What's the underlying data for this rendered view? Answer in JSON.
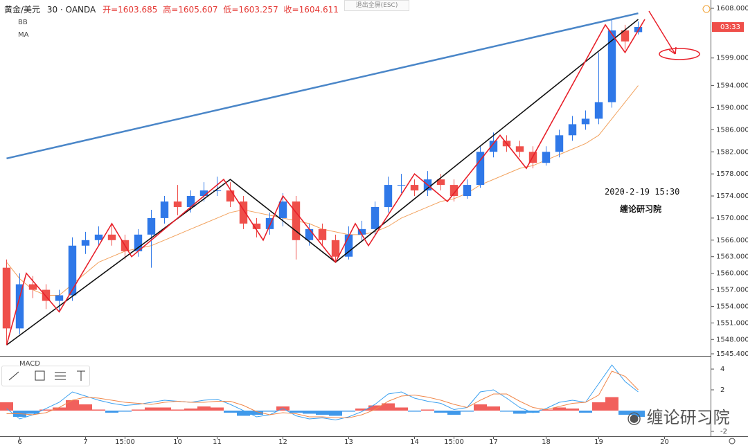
{
  "header": {
    "symbol": "黄金/美元",
    "interval": "30 · OANDA",
    "open": "开=1603.685",
    "high": "高=1605.607",
    "low": "低=1603.257",
    "close": "收=1604.611",
    "indicators": [
      "BB",
      "MA"
    ],
    "exit_fullscreen": "退出全屏(ESC)"
  },
  "watermark": "缠论研习院",
  "chart_data": [
    {
      "type": "candlestick",
      "timestamp_note": "2020-2-19 15:30",
      "author_note": "缠论研习院",
      "countdown": "03:33",
      "categories": [
        null,
        "6",
        null,
        null,
        null,
        null,
        "7",
        null,
        null,
        "15:00",
        null,
        null,
        null,
        "10",
        null,
        null,
        "11",
        null,
        null,
        null,
        null,
        "12",
        null,
        null,
        null,
        null,
        "13",
        null,
        null,
        null,
        null,
        "14",
        null,
        null,
        "15:00",
        null,
        null,
        "17",
        null,
        null,
        null,
        "18",
        null,
        null,
        null,
        "19",
        null,
        null,
        null,
        null,
        "20",
        null,
        null,
        null
      ],
      "open": [
        1561,
        1550,
        1558,
        1557,
        1555,
        1556,
        1565,
        1566,
        1567,
        1566,
        1564,
        1567,
        1570,
        1573,
        1572,
        1574,
        1575,
        1575,
        1573,
        1569,
        1568,
        1570,
        1573,
        1566,
        1568,
        1566,
        1563,
        1567,
        1568,
        1572,
        1576,
        1576,
        1575,
        1577,
        1576,
        1574,
        1576,
        1582,
        1584,
        1583,
        1582,
        1580,
        1582,
        1585,
        1587,
        1588,
        1591,
        1604,
        1603.685,
        null,
        null,
        null,
        null,
        null
      ],
      "high": [
        1562.5,
        1560,
        1559.5,
        1558,
        1557,
        1566.5,
        1567.5,
        1568.5,
        1569,
        1567,
        1568,
        1571.5,
        1574,
        1576,
        1575,
        1576.5,
        1577.5,
        1576.5,
        1574,
        1570,
        1571,
        1574.5,
        1574,
        1569,
        1569,
        1567,
        1568.5,
        1569.5,
        1573,
        1577.5,
        1578,
        1577,
        1578.5,
        1578,
        1577,
        1577,
        1583,
        1585.5,
        1585,
        1584,
        1583,
        1583,
        1586,
        1588.5,
        1589.5,
        1600,
        1606,
        1605,
        1605.607,
        null,
        null,
        null,
        null,
        null
      ],
      "low": [
        1547,
        1549,
        1555.5,
        1553.5,
        1553,
        1555,
        1563.5,
        1565,
        1565,
        1562.5,
        1563,
        1561,
        1569,
        1570.5,
        1571,
        1573,
        1574,
        1572,
        1568,
        1566.5,
        1567,
        1568.5,
        1562.5,
        1565,
        1565,
        1562,
        1562.5,
        1566,
        1567,
        1571,
        1574.5,
        1574,
        1574,
        1575,
        1573,
        1573.5,
        1575.5,
        1581,
        1582,
        1581,
        1579,
        1579.5,
        1581,
        1584,
        1586,
        1587,
        1590,
        1600.5,
        1603.257,
        null,
        null,
        null,
        null,
        null
      ],
      "close": [
        1550,
        1558,
        1557,
        1555,
        1556,
        1565,
        1566,
        1567,
        1566,
        1564,
        1567,
        1570,
        1573,
        1572,
        1574,
        1575,
        1575,
        1573,
        1569,
        1568,
        1570,
        1573,
        1566,
        1568,
        1566,
        1563,
        1567,
        1568,
        1572,
        1576,
        1576,
        1575,
        1577,
        1576,
        1574,
        1576,
        1582,
        1584,
        1583,
        1582,
        1580,
        1582,
        1585,
        1587,
        1588,
        1591,
        1604,
        1602,
        1604.611,
        null,
        null,
        null,
        null,
        null
      ],
      "up_color": "#2f78e8",
      "down_color": "#ef4f4a",
      "ma": {
        "color": "#f2a25e",
        "values": [
          1562,
          1559,
          1557,
          1556,
          1556,
          1558,
          1560,
          1562,
          1563,
          1564,
          1564.5,
          1565,
          1566,
          1567,
          1568,
          1569,
          1570,
          1571,
          1571.5,
          1571,
          1570.5,
          1570,
          1569.5,
          1569,
          1568,
          1567.5,
          1567,
          1567,
          1567.5,
          1568.5,
          1570,
          1571,
          1572,
          1573,
          1573.5,
          1574.5,
          1576,
          1577,
          1578,
          1579,
          1579.5,
          1580.5,
          1581.5,
          1582.5,
          1583.5,
          1585,
          1588,
          1591,
          1594,
          null,
          null,
          null,
          null,
          null
        ]
      },
      "lines": [
        {
          "color": "#4a86c8",
          "x": [
            0,
            48
          ],
          "y": [
            1580.8,
            1607.1
          ]
        },
        {
          "color": "#111111",
          "x": [
            0,
            17,
            25,
            48
          ],
          "y": [
            1547,
            1577,
            1562,
            1606
          ]
        },
        {
          "color": "#e8202a",
          "x": [
            0,
            1.5,
            4,
            8,
            9.5,
            16.5,
            19.5,
            21,
            25,
            26.5,
            27.5,
            31,
            33.5,
            37.5,
            39.5,
            45.5,
            47,
            48.5
          ],
          "y": [
            1547,
            1560,
            1553,
            1569,
            1563,
            1577,
            1566,
            1574,
            1562,
            1569,
            1565,
            1578,
            1573,
            1585,
            1579,
            1605,
            1600,
            1606
          ]
        }
      ],
      "ylim": [
        1545.4,
        1608
      ],
      "yticks": [
        {
          "value": 1608,
          "label": "1608.000"
        },
        {
          "value": 1599,
          "label": "1599.000"
        },
        {
          "value": 1594,
          "label": "1594.000"
        },
        {
          "value": 1590,
          "label": "1590.000"
        },
        {
          "value": 1586,
          "label": "1586.000"
        },
        {
          "value": 1582,
          "label": "1582.000"
        },
        {
          "value": 1578,
          "label": "1578.000"
        },
        {
          "value": 1574,
          "label": "1574.000"
        },
        {
          "value": 1570,
          "label": "1570.000"
        },
        {
          "value": 1566,
          "label": "1566.000"
        },
        {
          "value": 1563,
          "label": "1563.000"
        },
        {
          "value": 1560,
          "label": "1560.000"
        },
        {
          "value": 1557,
          "label": "1557.000"
        },
        {
          "value": 1554,
          "label": "1554.000"
        },
        {
          "value": 1551,
          "label": "1551.000"
        },
        {
          "value": 1548,
          "label": "1548.000"
        },
        {
          "value": 1545.4,
          "label": "1545.400"
        }
      ]
    },
    {
      "type": "macd",
      "title": "MACD",
      "histogram": {
        "color": "#ef4f4a",
        "negative_color": "#2b8ee8",
        "values": [
          0.8,
          -0.6,
          -0.3,
          0.1,
          0.3,
          1.0,
          0.6,
          0.1,
          -0.2,
          -0.1,
          0.1,
          0.3,
          0.3,
          0.1,
          0.2,
          0.4,
          0.3,
          -0.2,
          -0.5,
          -0.4,
          -0.1,
          0.4,
          -0.2,
          -0.3,
          -0.4,
          -0.5,
          -0.1,
          0.2,
          0.5,
          0.7,
          0.3,
          -0.1,
          0.1,
          -0.2,
          -0.4,
          -0.1,
          0.6,
          0.4,
          -0.1,
          -0.3,
          -0.2,
          0.1,
          0.3,
          0.2,
          -0.2,
          0.8,
          1.3,
          -0.4,
          -0.6,
          null,
          null,
          null,
          null,
          null
        ]
      },
      "series": [
        {
          "color": "#3aa0f0",
          "values": [
            0.2,
            -0.8,
            -0.4,
            0.2,
            0.8,
            1.8,
            1.4,
            1.0,
            0.7,
            0.5,
            0.6,
            0.8,
            1.0,
            0.9,
            0.8,
            1.0,
            1.1,
            0.6,
            0,
            -0.6,
            -0.4,
            0.2,
            -0.5,
            -0.8,
            -0.7,
            -0.9,
            -0.6,
            -0.1,
            0.6,
            1.6,
            1.8,
            1.2,
            0.9,
            0.7,
            0.1,
            0.3,
            1.8,
            2.0,
            1.2,
            0.3,
            -0.2,
            0.2,
            0.8,
            1.0,
            0.8,
            2.6,
            4.4,
            2.8,
            1.8,
            null,
            null,
            null,
            null,
            null
          ]
        },
        {
          "color": "#f0874a",
          "values": [
            -0.3,
            -0.3,
            -0.4,
            -0.2,
            0.3,
            1.0,
            1.3,
            1.2,
            1.0,
            0.8,
            0.7,
            0.6,
            0.8,
            0.9,
            0.8,
            0.8,
            0.9,
            0.9,
            0.5,
            -0.1,
            -0.4,
            -0.2,
            -0.3,
            -0.6,
            -0.6,
            -0.7,
            -0.7,
            -0.4,
            0.1,
            0.9,
            1.4,
            1.5,
            1.3,
            1.0,
            0.6,
            0.3,
            1.0,
            1.6,
            1.6,
            0.9,
            0.3,
            0.1,
            0.4,
            0.7,
            0.8,
            1.5,
            3.8,
            3.3,
            2.0,
            null,
            null,
            null,
            null,
            null
          ]
        }
      ],
      "ylim": [
        -2.47,
        5.07
      ],
      "yticks": [
        4,
        2,
        -2
      ]
    }
  ]
}
